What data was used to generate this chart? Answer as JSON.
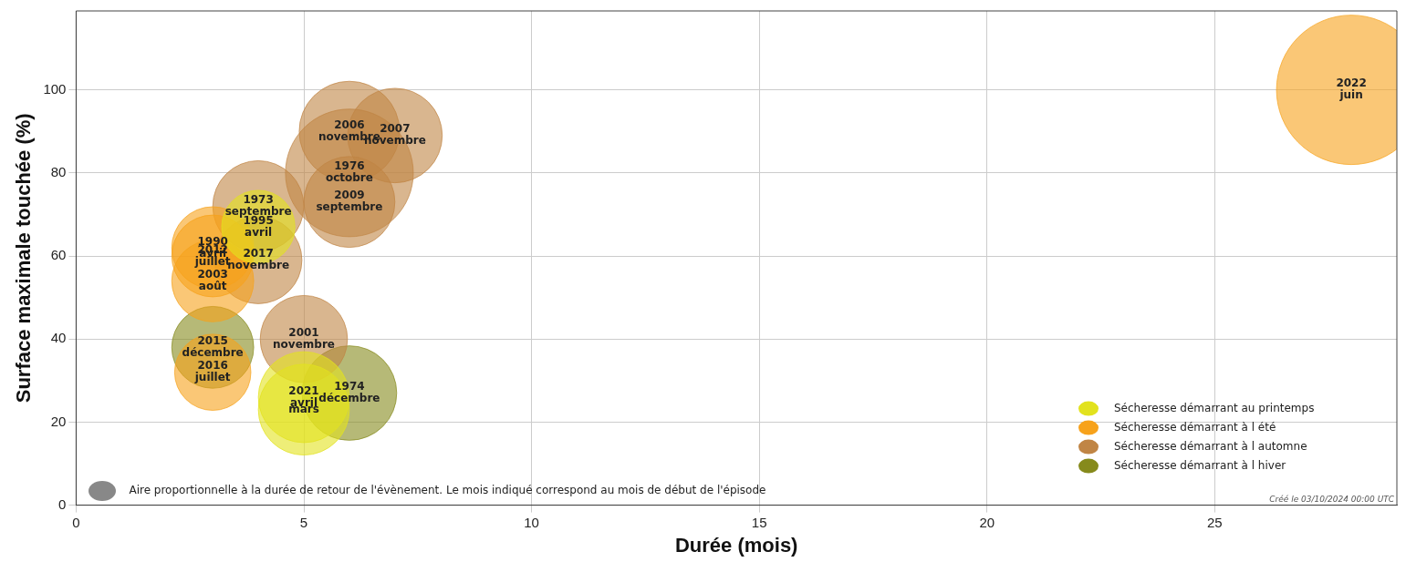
{
  "chart_data": {
    "type": "bubble",
    "xlabel": "Durée (mois)",
    "ylabel": "Surface maximale touchée (%)",
    "xlim": [
      0,
      29
    ],
    "xticks": [
      0,
      5,
      10,
      15,
      20,
      25
    ],
    "ylim": [
      0,
      119
    ],
    "yticks": [
      0,
      20,
      40,
      60,
      80,
      100
    ],
    "grid": true,
    "legend": "bottom right",
    "marker": "circle",
    "series": [
      {
        "name": "Sécheresse démarrant au printemps",
        "color": "#e2e21e",
        "x": [
          4,
          5,
          5
        ],
        "values": [
          67,
          26,
          23
        ],
        "sizes": [
          0.24,
          0.37,
          0.37
        ]
      },
      {
        "name": "Sécheresse démarrant à l été",
        "color": "#f7a21b",
        "x": [
          28,
          3,
          3,
          3,
          3
        ],
        "values": [
          100,
          62,
          60,
          54,
          32
        ],
        "sizes": [
          1,
          0.3,
          0.3,
          0.3,
          0.26
        ]
      },
      {
        "name": "Sécheresse démarrant à l automne",
        "color": "#c08545",
        "x": [
          6,
          7,
          6,
          6,
          4,
          4,
          5
        ],
        "values": [
          90,
          89,
          80,
          73,
          72,
          59,
          40
        ],
        "sizes": [
          0.45,
          0.4,
          0.73,
          0.37,
          0.37,
          0.34,
          0.34
        ]
      },
      {
        "name": "Sécheresse démarrant à l hiver",
        "color": "#868a1c",
        "x": [
          3,
          6
        ],
        "values": [
          38,
          27
        ],
        "sizes": [
          0.3,
          0.4
        ]
      }
    ],
    "annotations": [
      {
        "text": "1995\navril",
        "x": 4,
        "y": 67
      },
      {
        "text": "2021\navril",
        "x": 5,
        "y": 26
      },
      {
        "text": "mars",
        "x": 5,
        "y": 23
      },
      {
        "text": "2022\njuin",
        "x": 28,
        "y": 100
      },
      {
        "text": "1990\navril",
        "x": 3,
        "y": 62
      },
      {
        "text": "2012\njuillet",
        "x": 3,
        "y": 60
      },
      {
        "text": "2003\naoût",
        "x": 3,
        "y": 54
      },
      {
        "text": "2016\njuillet",
        "x": 3,
        "y": 32
      },
      {
        "text": "2006\nnovembre",
        "x": 6,
        "y": 90
      },
      {
        "text": "2007\nnovembre",
        "x": 7,
        "y": 89
      },
      {
        "text": "1976\noctobre",
        "x": 6,
        "y": 80
      },
      {
        "text": "2009\nseptembre",
        "x": 6,
        "y": 73
      },
      {
        "text": "1973\nseptembre",
        "x": 4,
        "y": 72
      },
      {
        "text": "2017\nnovembre",
        "x": 4,
        "y": 59
      },
      {
        "text": "2001\nnovembre",
        "x": 5,
        "y": 40
      },
      {
        "text": "2015\ndécembre",
        "x": 3,
        "y": 38
      },
      {
        "text": "1974\ndécembre",
        "x": 6,
        "y": 27
      },
      "Aire proportionnelle à la durée de retour de l'évènement. Le mois indiqué correspond au mois de début de l'épisode",
      "Créé le 03/10/2024 00:00 UTC"
    ]
  }
}
